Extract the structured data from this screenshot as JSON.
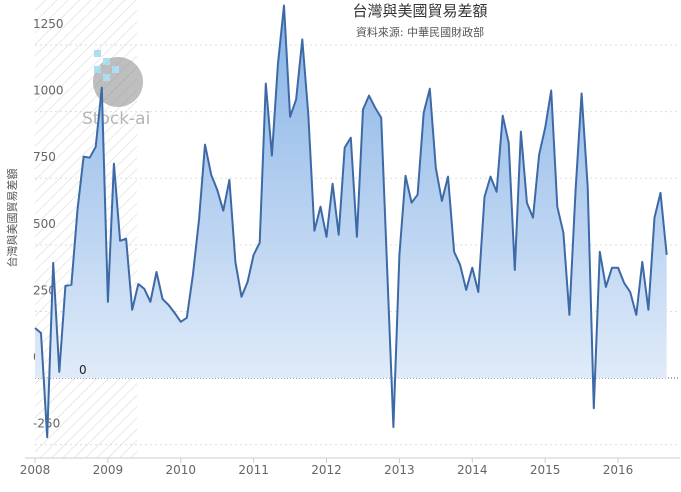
{
  "chart_data": {
    "type": "area",
    "title": "台灣與美國貿易差額",
    "subtitle": "資料來源: 中華民國財政部",
    "y_label": "台灣與美國貿易差額",
    "watermark": "Stock-ai",
    "annotation": "0",
    "x": [
      2008,
      2008.083,
      2008.167,
      2008.25,
      2008.333,
      2008.417,
      2008.5,
      2008.583,
      2008.667,
      2008.75,
      2008.833,
      2008.917,
      2009,
      2009.083,
      2009.167,
      2009.25,
      2009.333,
      2009.417,
      2009.5,
      2009.583,
      2009.667,
      2009.75,
      2009.833,
      2009.917,
      2010,
      2010.083,
      2010.167,
      2010.25,
      2010.333,
      2010.417,
      2010.5,
      2010.583,
      2010.667,
      2010.75,
      2010.833,
      2010.917,
      2011,
      2011.083,
      2011.167,
      2011.25,
      2011.333,
      2011.417,
      2011.5,
      2011.583,
      2011.667,
      2011.75,
      2011.833,
      2011.917,
      2012,
      2012.083,
      2012.167,
      2012.25,
      2012.333,
      2012.417,
      2012.5,
      2012.583,
      2012.667,
      2012.75,
      2012.833,
      2012.917,
      2013,
      2013.083,
      2013.167,
      2013.25,
      2013.333,
      2013.417,
      2013.5,
      2013.583,
      2013.667,
      2013.75,
      2013.833,
      2013.917,
      2014,
      2014.083,
      2014.167,
      2014.25,
      2014.333,
      2014.417,
      2014.5,
      2014.583,
      2014.667,
      2014.75,
      2014.833,
      2014.917,
      2015,
      2015.083,
      2015.167,
      2015.25,
      2015.333,
      2015.417,
      2015.5,
      2015.583,
      2015.667,
      2015.75,
      2015.833,
      2015.917,
      2016,
      2016.083,
      2016.167,
      2016.25,
      2016.333,
      2016.417,
      2016.5,
      2016.583,
      2016.667
    ],
    "series": [
      {
        "color": "#3d6aa6",
        "values": [
          188,
          169,
          -222,
          432,
          23,
          346,
          350,
          632,
          831,
          827,
          868,
          1090,
          286,
          805,
          515,
          523,
          256,
          353,
          335,
          286,
          398,
          297,
          274,
          244,
          211,
          226,
          387,
          594,
          876,
          763,
          707,
          628,
          744,
          436,
          305,
          361,
          462,
          508,
          1105,
          835,
          1177,
          1398,
          981,
          1045,
          1271,
          989,
          553,
          643,
          530,
          729,
          538,
          865,
          902,
          530,
          1008,
          1060,
          1015,
          977,
          406,
          -184,
          462,
          759,
          658,
          688,
          996,
          1086,
          789,
          665,
          756,
          474,
          425,
          331,
          414,
          323,
          680,
          756,
          699,
          985,
          883,
          406,
          925,
          658,
          602,
          838,
          940,
          1079,
          643,
          545,
          237,
          707,
          1068,
          718,
          -113,
          474,
          342,
          414,
          414,
          357,
          323,
          237,
          436,
          256,
          602,
          695,
          462
        ]
      }
    ],
    "xlim": [
      2008,
      2016.85
    ],
    "ylim": [
      -300,
      1400
    ],
    "xticks": [
      2008,
      2009,
      2010,
      2011,
      2012,
      2013,
      2014,
      2015,
      2016
    ],
    "yticks": [
      -250,
      0,
      250,
      500,
      750,
      1000,
      1250
    ],
    "grid": true
  }
}
